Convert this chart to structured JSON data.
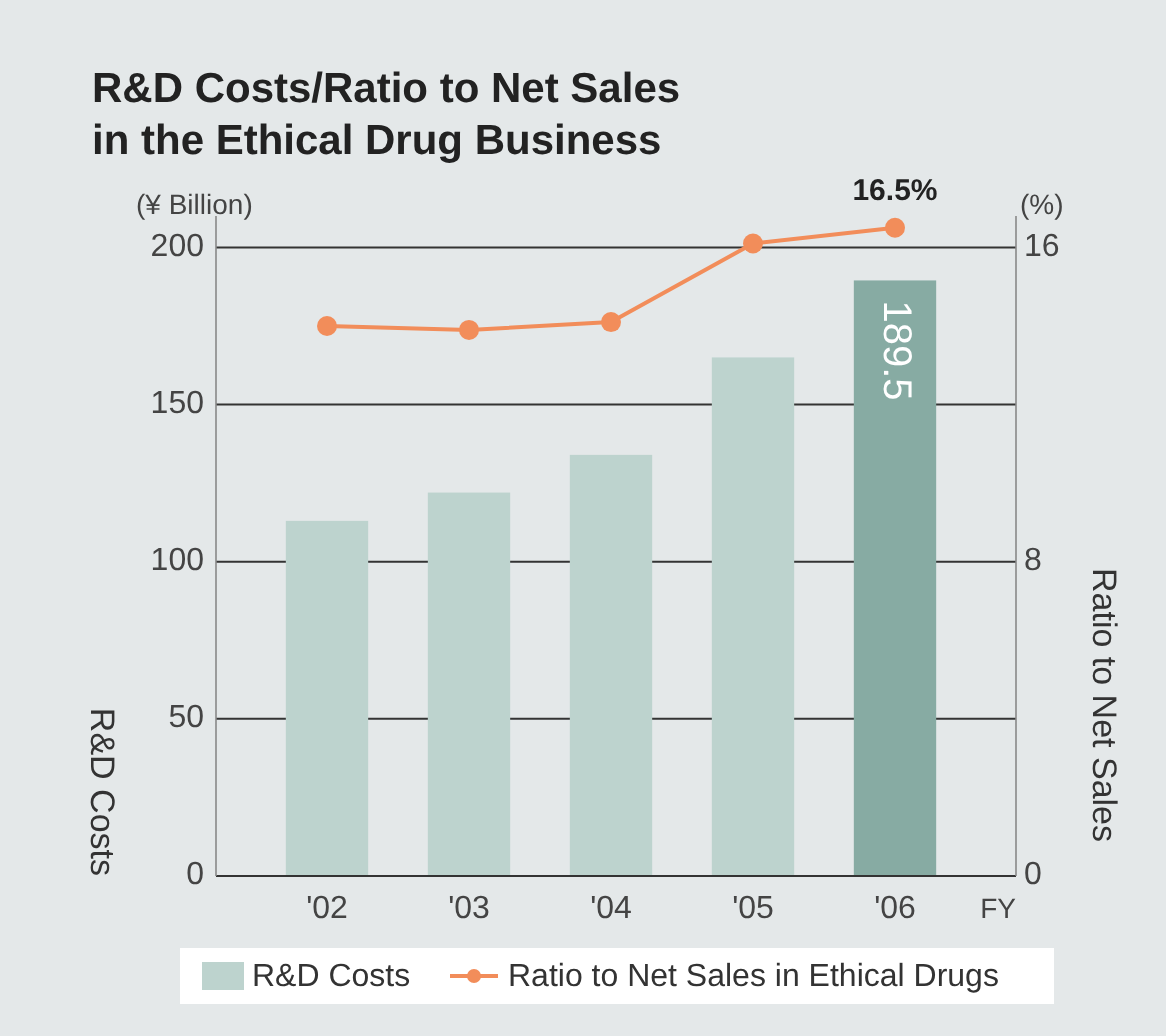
{
  "chart_data": {
    "type": "bar",
    "title": "R&D Costs/Ratio to Net Sales\nin the Ethical Drug Business",
    "xlabel": "FY",
    "ylabel": "R&D Costs",
    "y2label": "Ratio to Net Sales",
    "annotations": [
      "(¥ Billion)",
      "(%)"
    ],
    "categories": [
      "'02",
      "'03",
      "'04",
      "'05",
      "'06"
    ],
    "series": [
      {
        "name": "R&D Costs",
        "colors": [
          "#bdd3ce",
          "#bdd3ce",
          "#bdd3ce",
          "#bdd3ce",
          "#87aba3"
        ],
        "values": [
          113,
          122,
          134,
          165,
          189.5
        ],
        "value_labels": [
          null,
          null,
          null,
          null,
          "189.5"
        ]
      },
      {
        "name": "Ratio to Net Sales in Ethical Drugs",
        "type": "line",
        "axis": "y2",
        "color": "#f28d5a",
        "values": [
          14.0,
          13.9,
          14.1,
          16.1,
          16.5
        ],
        "value_labels": [
          null,
          null,
          null,
          null,
          "16.5%"
        ]
      }
    ],
    "ylim": [
      0,
      210
    ],
    "yticks": [
      0,
      50,
      100,
      150,
      200
    ],
    "y2lim": [
      0,
      16.8
    ],
    "y2ticks": [
      0,
      8,
      16
    ],
    "grid": "y",
    "legend": "bottom",
    "marker": "circle",
    "line_style": "solid"
  }
}
